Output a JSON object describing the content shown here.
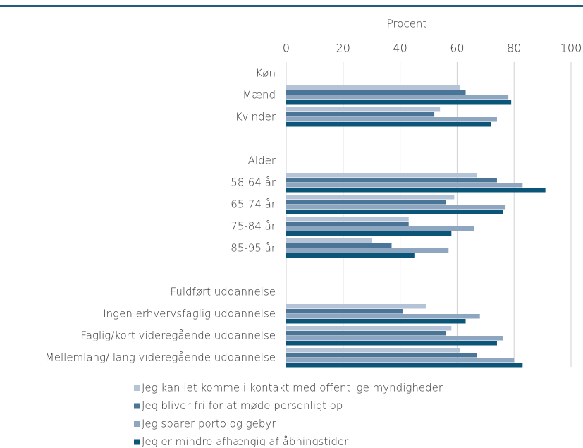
{
  "chart_data": {
    "type": "hbar",
    "xlabel": "Procent",
    "categories": [
      "Køn",
      "Mænd",
      "Kvinder",
      null,
      "Alder",
      "58-64 år",
      "65-74 år",
      "75-84 år",
      "85-95 år",
      null,
      "Fuldført uddannelse",
      "Ingen erhvervsfaglig uddannelse",
      "Faglig/kort videregående uddannelse",
      "Mellemlang/ lang videregående uddannelse"
    ],
    "series": [
      {
        "name": "Jeg kan let komme i kontakt med offentlige myndigheder",
        "color": "#b4c3d6",
        "values": [
          null,
          61,
          54,
          null,
          null,
          67,
          59,
          43,
          30,
          null,
          null,
          49,
          58,
          61
        ]
      },
      {
        "name": "Jeg bliver fri for at møde personligt op",
        "color": "#4a7596",
        "values": [
          null,
          63,
          52,
          null,
          null,
          74,
          56,
          43,
          37,
          null,
          null,
          41,
          56,
          67
        ]
      },
      {
        "name": "Jeg sparer porto og gebyr",
        "color": "#8fa6c0",
        "values": [
          null,
          78,
          74,
          null,
          null,
          83,
          77,
          66,
          57,
          null,
          null,
          68,
          76,
          80
        ]
      },
      {
        "name": "Jeg er mindre afhængig af åbningstider",
        "color": "#0b5579",
        "values": [
          null,
          79,
          72,
          null,
          null,
          91,
          76,
          58,
          45,
          null,
          null,
          63,
          74,
          83
        ]
      }
    ],
    "xlim": [
      0,
      100
    ],
    "xticks": [
      0,
      20,
      40,
      60,
      80,
      100
    ],
    "grid": true,
    "legend": "bottom"
  }
}
